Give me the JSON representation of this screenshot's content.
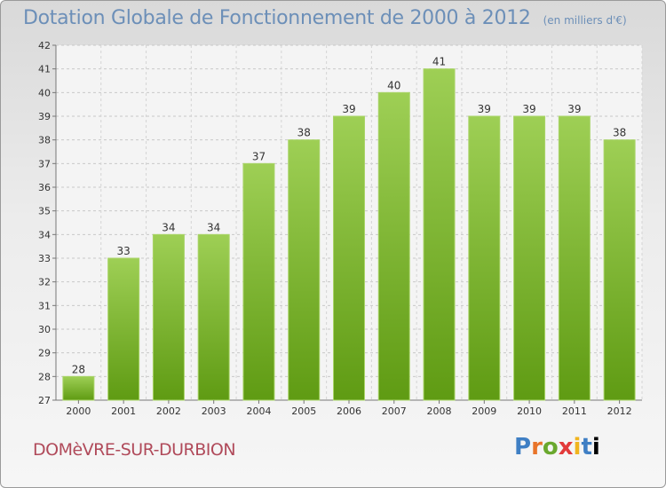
{
  "title": "Dotation Globale de Fonctionnement de 2000 à 2012",
  "unit": "(en milliers d'€)",
  "commune": "DOMèVRE-SUR-DURBION",
  "logo": {
    "letters": [
      "P",
      "r",
      "o",
      "x",
      "i",
      "t",
      "i"
    ]
  },
  "colors": {
    "bar_top": "#9ecf55",
    "bar_bottom": "#5f9b13",
    "title": "#6c8fb8",
    "commune": "#b04a5a"
  },
  "chart_data": {
    "type": "bar",
    "title": "Dotation Globale de Fonctionnement de 2000 à 2012",
    "xlabel": "",
    "ylabel": "",
    "categories": [
      "2000",
      "2001",
      "2002",
      "2003",
      "2004",
      "2005",
      "2006",
      "2007",
      "2008",
      "2009",
      "2010",
      "2011",
      "2012"
    ],
    "values": [
      28,
      33,
      34,
      34,
      37,
      38,
      39,
      40,
      41,
      39,
      39,
      39,
      38
    ],
    "ylim": [
      27,
      42
    ],
    "yticks": [
      27,
      28,
      29,
      30,
      31,
      32,
      33,
      34,
      35,
      36,
      37,
      38,
      39,
      40,
      41,
      42
    ],
    "grid": true
  }
}
